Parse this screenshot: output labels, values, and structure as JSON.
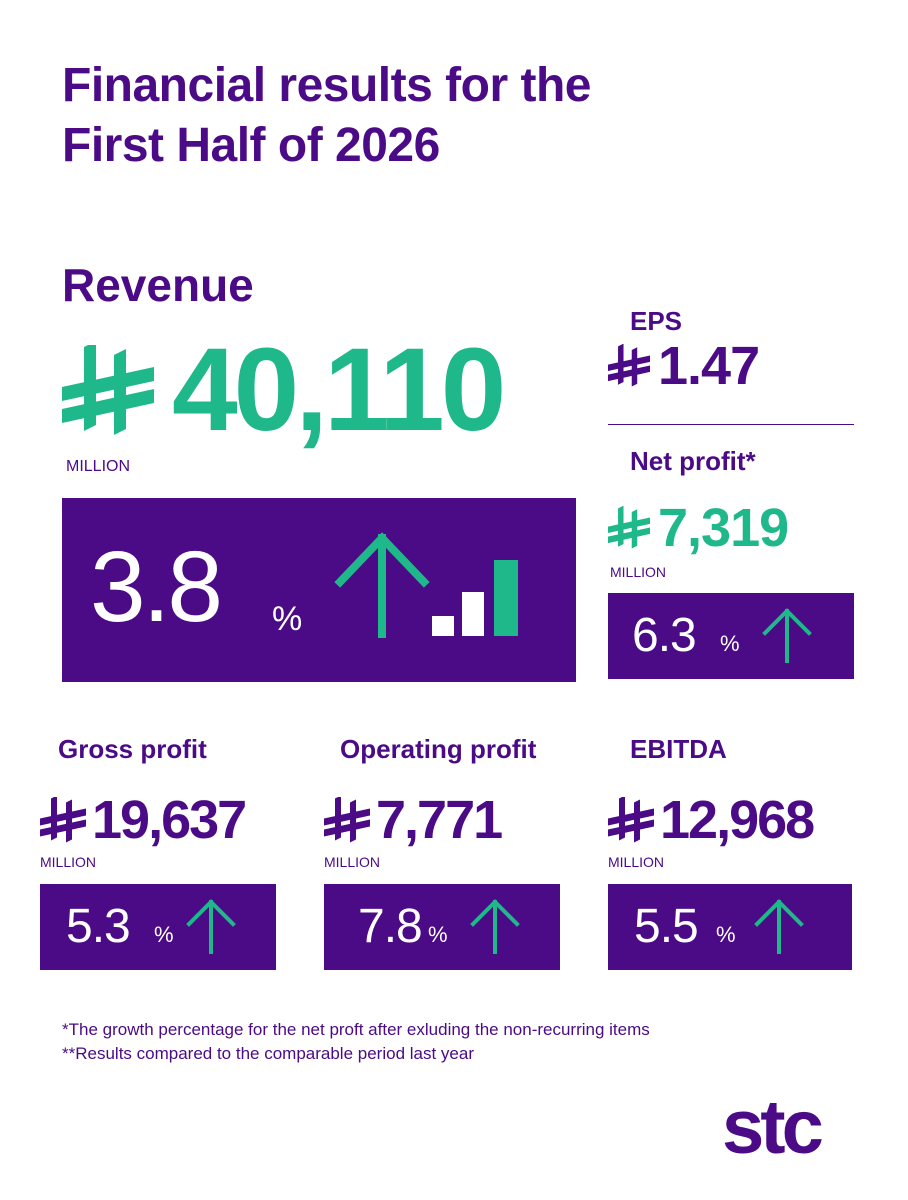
{
  "title": {
    "line1": "Financial results for the",
    "line2": "First Half of 2026"
  },
  "colors": {
    "purple": "#4b0a86",
    "green": "#1fb88a"
  },
  "revenue": {
    "label": "Revenue",
    "value": "40,110",
    "unit": "MILLION",
    "growth": "3.8",
    "growth_sign": "%"
  },
  "eps": {
    "label": "EPS",
    "value": "1.47"
  },
  "net_profit": {
    "label": "Net profit*",
    "value": "7,319",
    "unit": "MILLION",
    "growth": "6.3",
    "growth_sign": "%"
  },
  "gross_profit": {
    "label": "Gross profit",
    "value": "19,637",
    "unit": "MILLION",
    "growth": "5.3",
    "growth_sign": "%"
  },
  "operating_profit": {
    "label": "Operating profit",
    "value": "7,771",
    "unit": "MILLION",
    "growth": "7.8",
    "growth_sign": "%"
  },
  "ebitda": {
    "label": "EBITDA",
    "value": "12,968",
    "unit": "MILLION",
    "growth": "5.5",
    "growth_sign": "%"
  },
  "footnotes": {
    "line1": "*The growth percentage for the net proft after exluding the non-recurring items",
    "line2": "**Results compared to the comparable period last year"
  },
  "logo": "stc",
  "icons": {
    "currency": "saudi-riyal-symbol-icon",
    "arrow": "arrow-up-icon",
    "bars": "bar-chart-icon"
  }
}
